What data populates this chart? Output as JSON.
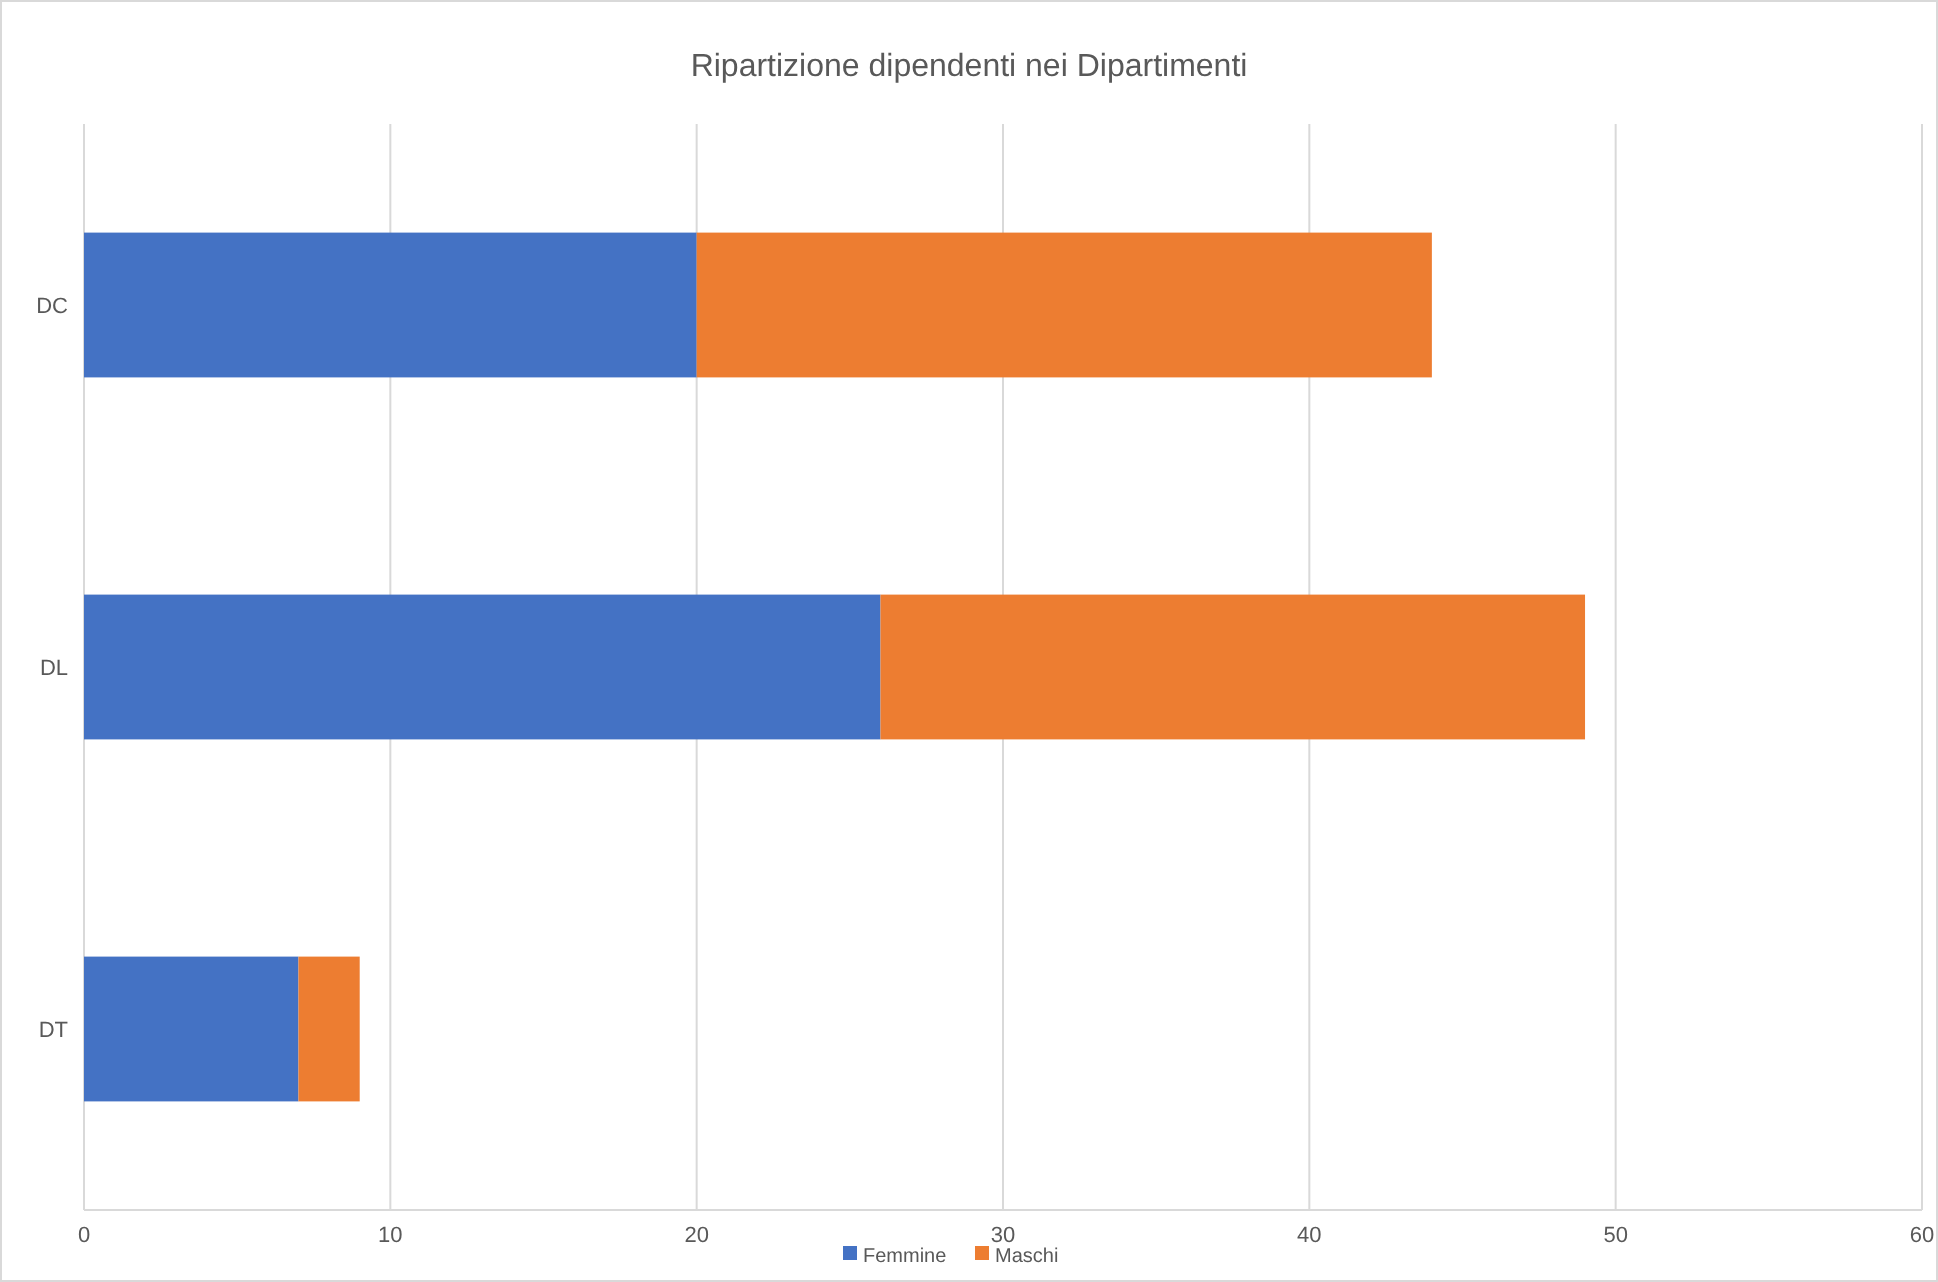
{
  "chart_data": {
    "type": "bar",
    "title": "Ripartizione dipendenti nei Dipartimenti",
    "orientation": "horizontal",
    "stacked": true,
    "categories": [
      "DC",
      "DL",
      "DT"
    ],
    "series": [
      {
        "name": "Femmine",
        "color": "#4472c4",
        "values": [
          20,
          26,
          7
        ]
      },
      {
        "name": "Maschi",
        "color": "#ed7d31",
        "values": [
          24,
          23,
          2
        ]
      }
    ],
    "xlim": [
      0,
      60
    ],
    "xticks": [
      0,
      10,
      20,
      30,
      40,
      50,
      60
    ],
    "grid": "x",
    "legend": "bottom"
  }
}
